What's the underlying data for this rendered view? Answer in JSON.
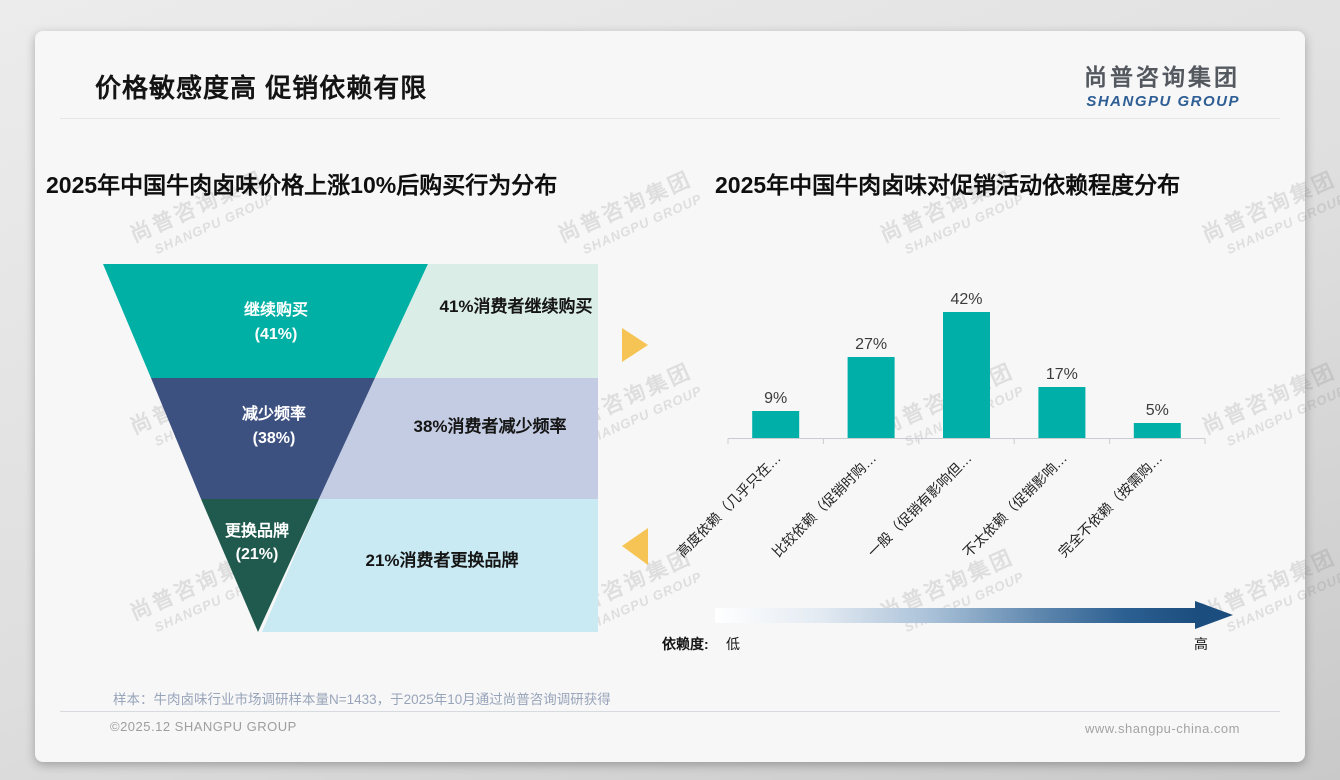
{
  "page": {
    "title": "价格敏感度高 促销依赖有限",
    "logo": {
      "cn": "尚普咨询集团",
      "en": "SHANGPU GROUP"
    },
    "watermark": {
      "cn": "尚普咨询集团",
      "en": "SHANGPU GROUP"
    },
    "accent_arrow_color": "#F6C454",
    "footer": {
      "sample_note": "样本：牛肉卤味行业市场调研样本量N=1433，于2025年10月通过尚普咨询调研获得",
      "copyright": "©2025.12 SHANGPU GROUP",
      "website": "www.shangpu-china.com"
    }
  },
  "chart_data": [
    {
      "type": "funnel",
      "title": "2025年中国牛肉卤味价格上涨10%后购买行为分布",
      "categories": [
        "继续购买",
        "减少频率",
        "更换品牌"
      ],
      "values": [
        41,
        38,
        21
      ],
      "pct_labels": [
        "(41%)",
        "(38%)",
        "(21%)"
      ],
      "annotations": [
        "41%消费者继续购买",
        "38%消费者减少频率",
        "21%消费者更换品牌"
      ],
      "colors": [
        "#00B0A4",
        "#3D5181",
        "#20594D"
      ],
      "panel_colors": [
        "#DAEDE7",
        "#C3CCE2",
        "#C9EAF3"
      ]
    },
    {
      "type": "bar",
      "title": "2025年中国牛肉卤味对促销活动依赖程度分布",
      "categories": [
        "高度依赖（几乎只在…",
        "比较依赖（促销时购…",
        "一般（促销有影响但…",
        "不太依赖（促销影响…",
        "完全不依赖（按需购…"
      ],
      "values": [
        9,
        27,
        42,
        17,
        5
      ],
      "value_labels": [
        "9%",
        "27%",
        "42%",
        "17%",
        "5%"
      ],
      "bar_color": "#00AFA8",
      "ylim": [
        0,
        45
      ],
      "grid": false,
      "legend_position": "none",
      "x_axis_note": {
        "label": "依赖度:",
        "low": "低",
        "high": "高",
        "gradient_start": "#FFFFFF",
        "gradient_end": "#1B4E7F"
      }
    }
  ]
}
